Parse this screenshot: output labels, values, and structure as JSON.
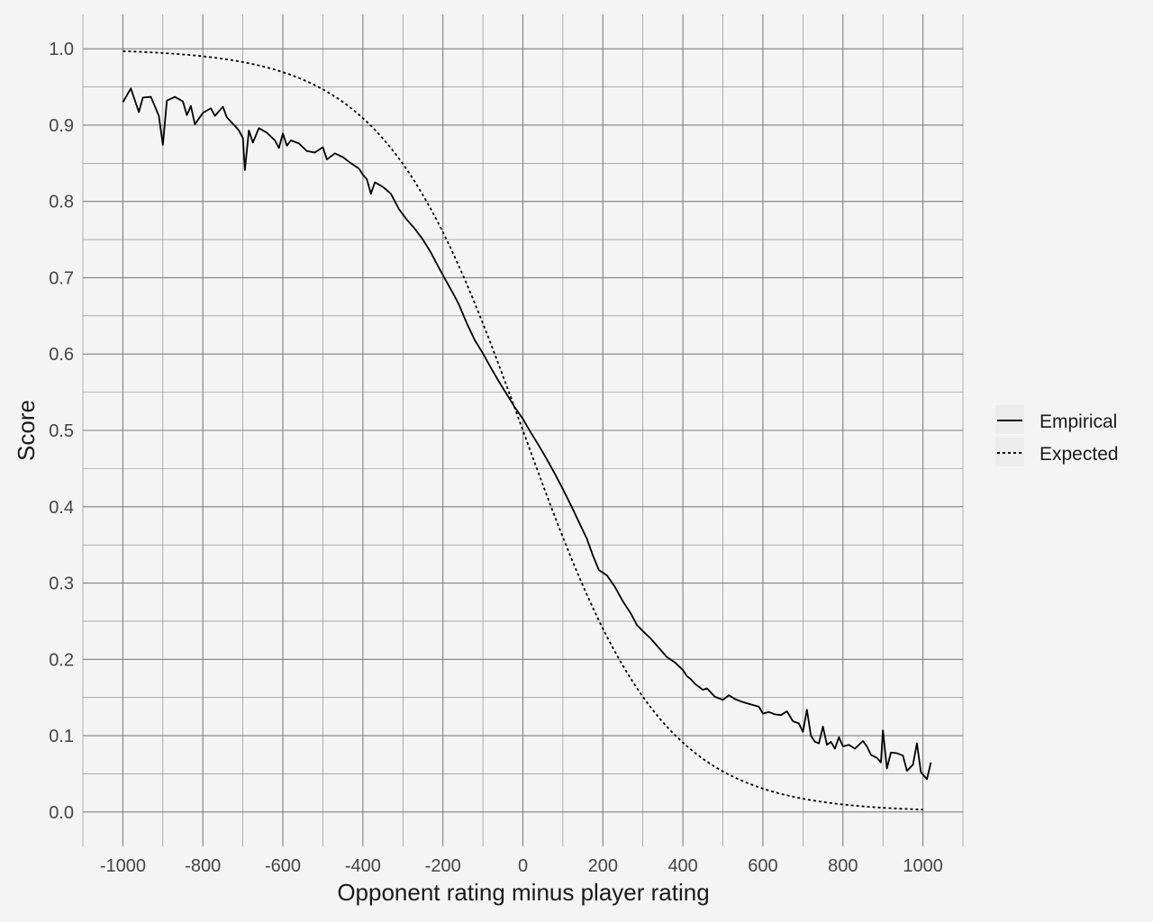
{
  "chart_data": {
    "type": "line",
    "title": "",
    "xlabel": "Opponent rating minus player rating",
    "ylabel": "Score",
    "xlim": [
      -1100,
      1100
    ],
    "ylim": [
      -0.045,
      1.045
    ],
    "x_ticks": [
      "-1000",
      "-800",
      "-600",
      "-400",
      "-200",
      "0",
      "200",
      "400",
      "600",
      "800",
      "1000"
    ],
    "y_ticks": [
      "0.0",
      "0.1",
      "0.2",
      "0.3",
      "0.4",
      "0.5",
      "0.6",
      "0.7",
      "0.8",
      "0.9",
      "1.0"
    ],
    "grid": true,
    "legend_position": "right",
    "background_color": "#f4f4f4",
    "grid_color": "#7f7f7f",
    "line_color": "#000000",
    "series": [
      {
        "name": "Empirical",
        "style": "solid",
        "points": [
          [
            -1000,
            0.93
          ],
          [
            -980,
            0.948
          ],
          [
            -960,
            0.917
          ],
          [
            -950,
            0.936
          ],
          [
            -930,
            0.937
          ],
          [
            -910,
            0.912
          ],
          [
            -900,
            0.874
          ],
          [
            -890,
            0.932
          ],
          [
            -870,
            0.937
          ],
          [
            -850,
            0.931
          ],
          [
            -840,
            0.913
          ],
          [
            -830,
            0.925
          ],
          [
            -820,
            0.901
          ],
          [
            -800,
            0.916
          ],
          [
            -780,
            0.922
          ],
          [
            -770,
            0.912
          ],
          [
            -750,
            0.924
          ],
          [
            -740,
            0.91
          ],
          [
            -720,
            0.899
          ],
          [
            -710,
            0.893
          ],
          [
            -700,
            0.883
          ],
          [
            -695,
            0.841
          ],
          [
            -685,
            0.893
          ],
          [
            -675,
            0.877
          ],
          [
            -660,
            0.896
          ],
          [
            -640,
            0.89
          ],
          [
            -620,
            0.88
          ],
          [
            -610,
            0.87
          ],
          [
            -600,
            0.889
          ],
          [
            -590,
            0.873
          ],
          [
            -580,
            0.88
          ],
          [
            -560,
            0.876
          ],
          [
            -540,
            0.866
          ],
          [
            -520,
            0.864
          ],
          [
            -500,
            0.871
          ],
          [
            -490,
            0.855
          ],
          [
            -470,
            0.863
          ],
          [
            -450,
            0.858
          ],
          [
            -430,
            0.85
          ],
          [
            -410,
            0.843
          ],
          [
            -400,
            0.835
          ],
          [
            -390,
            0.829
          ],
          [
            -380,
            0.81
          ],
          [
            -370,
            0.825
          ],
          [
            -350,
            0.819
          ],
          [
            -330,
            0.81
          ],
          [
            -310,
            0.79
          ],
          [
            -290,
            0.776
          ],
          [
            -270,
            0.764
          ],
          [
            -250,
            0.75
          ],
          [
            -230,
            0.733
          ],
          [
            -210,
            0.713
          ],
          [
            -190,
            0.694
          ],
          [
            -175,
            0.68
          ],
          [
            -160,
            0.665
          ],
          [
            -140,
            0.64
          ],
          [
            -120,
            0.618
          ],
          [
            -100,
            0.601
          ],
          [
            -80,
            0.582
          ],
          [
            -60,
            0.564
          ],
          [
            -40,
            0.547
          ],
          [
            -20,
            0.53
          ],
          [
            0,
            0.515
          ],
          [
            20,
            0.497
          ],
          [
            40,
            0.48
          ],
          [
            60,
            0.462
          ],
          [
            80,
            0.443
          ],
          [
            100,
            0.423
          ],
          [
            120,
            0.402
          ],
          [
            140,
            0.38
          ],
          [
            160,
            0.358
          ],
          [
            175,
            0.336
          ],
          [
            190,
            0.317
          ],
          [
            210,
            0.31
          ],
          [
            230,
            0.295
          ],
          [
            250,
            0.276
          ],
          [
            270,
            0.26
          ],
          [
            285,
            0.245
          ],
          [
            300,
            0.237
          ],
          [
            320,
            0.227
          ],
          [
            340,
            0.215
          ],
          [
            360,
            0.203
          ],
          [
            380,
            0.196
          ],
          [
            400,
            0.186
          ],
          [
            410,
            0.178
          ],
          [
            420,
            0.174
          ],
          [
            430,
            0.168
          ],
          [
            440,
            0.164
          ],
          [
            450,
            0.16
          ],
          [
            460,
            0.162
          ],
          [
            480,
            0.151
          ],
          [
            500,
            0.147
          ],
          [
            515,
            0.153
          ],
          [
            530,
            0.148
          ],
          [
            550,
            0.144
          ],
          [
            570,
            0.141
          ],
          [
            590,
            0.138
          ],
          [
            600,
            0.129
          ],
          [
            615,
            0.131
          ],
          [
            630,
            0.128
          ],
          [
            645,
            0.127
          ],
          [
            660,
            0.132
          ],
          [
            675,
            0.119
          ],
          [
            690,
            0.116
          ],
          [
            700,
            0.105
          ],
          [
            710,
            0.134
          ],
          [
            720,
            0.1
          ],
          [
            730,
            0.092
          ],
          [
            740,
            0.09
          ],
          [
            750,
            0.112
          ],
          [
            760,
            0.088
          ],
          [
            770,
            0.092
          ],
          [
            780,
            0.083
          ],
          [
            790,
            0.098
          ],
          [
            800,
            0.086
          ],
          [
            815,
            0.088
          ],
          [
            830,
            0.083
          ],
          [
            850,
            0.093
          ],
          [
            860,
            0.086
          ],
          [
            870,
            0.075
          ],
          [
            885,
            0.071
          ],
          [
            895,
            0.065
          ],
          [
            900,
            0.107
          ],
          [
            910,
            0.057
          ],
          [
            920,
            0.078
          ],
          [
            935,
            0.077
          ],
          [
            950,
            0.074
          ],
          [
            960,
            0.054
          ],
          [
            975,
            0.062
          ],
          [
            985,
            0.09
          ],
          [
            995,
            0.052
          ],
          [
            1010,
            0.043
          ],
          [
            1020,
            0.065
          ]
        ]
      },
      {
        "name": "Expected",
        "style": "dotted",
        "formula": "1 / (1 + 10^(x / 400))",
        "x_range": [
          -1000,
          1000
        ]
      }
    ]
  }
}
